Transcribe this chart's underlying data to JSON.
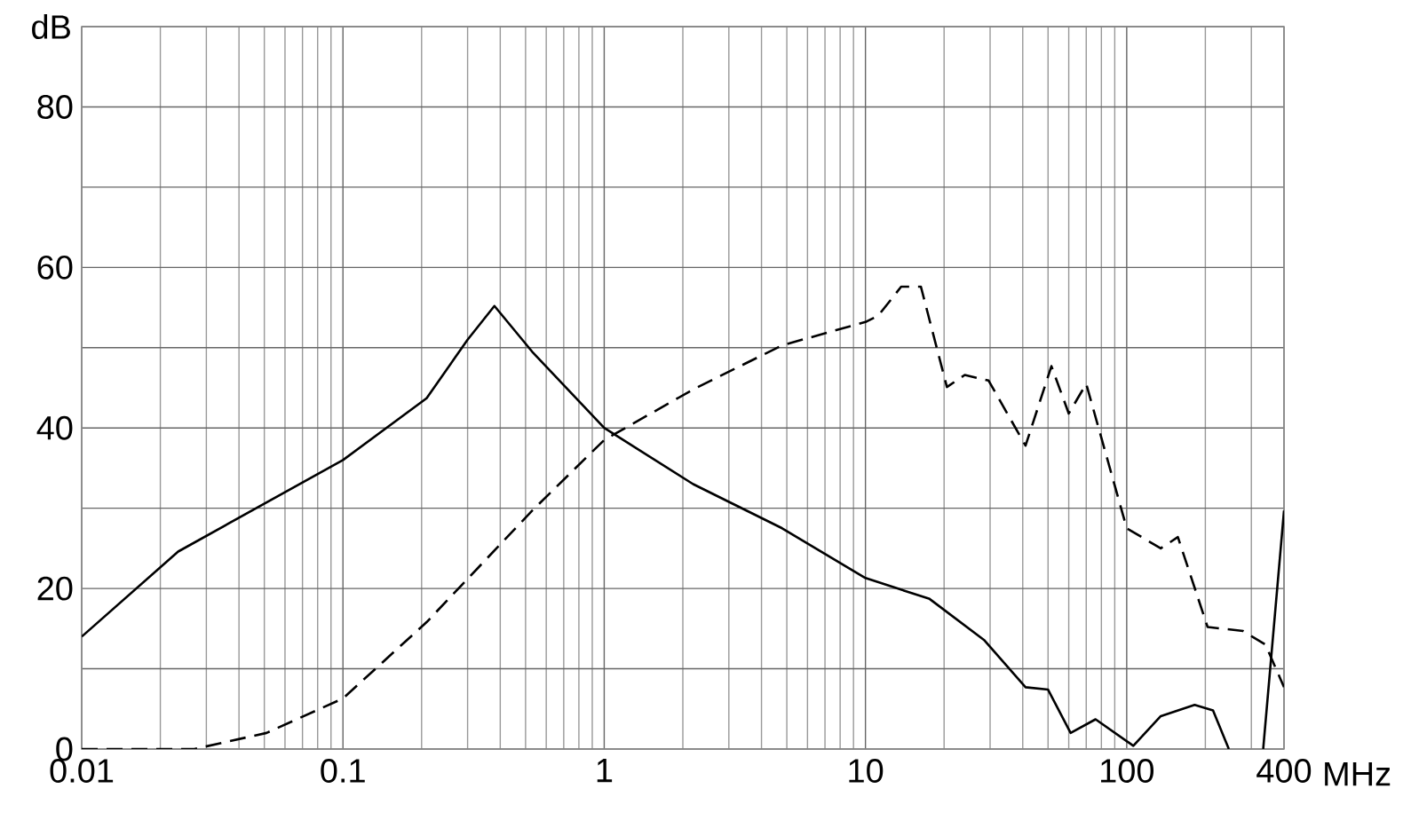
{
  "chart_data": {
    "type": "line",
    "xlabel": "MHz",
    "ylabel": "dB",
    "log": "x",
    "grid": true,
    "xlim": [
      0.01,
      400
    ],
    "xticks": [
      0.01,
      0.1,
      1,
      10,
      100,
      400
    ],
    "ylim": [
      0,
      90
    ],
    "yticks": [
      0,
      {
        "value": 10,
        "label": null
      },
      20,
      {
        "value": 30,
        "label": null
      },
      40,
      {
        "value": 50,
        "label": null
      },
      60,
      {
        "value": 70,
        "label": null
      },
      80,
      {
        "value": 90,
        "label": null
      }
    ],
    "series": [
      {
        "color": "#000000",
        "line_style": "solid",
        "x": [
          0.01,
          0.0234,
          0.1,
          0.209,
          0.3,
          0.38,
          0.53,
          1,
          2.19,
          4.8,
          10,
          17.6,
          28.4,
          41,
          50,
          61,
          76,
          106,
          135,
          182,
          214,
          246,
          290,
          333,
          400
        ],
        "values": [
          14,
          24.6,
          36,
          43.7,
          51,
          55.2,
          49.5,
          40,
          33,
          27.5,
          21.3,
          18.7,
          13.6,
          7.7,
          7.4,
          2,
          3.7,
          0.4,
          4.1,
          5.5,
          4.8,
          0,
          null,
          0,
          29.7
        ]
      },
      {
        "color": "#000000",
        "line_style": "dashed",
        "x": [
          0.01,
          0.027,
          0.051,
          0.1,
          0.209,
          0.53,
          1,
          2.19,
          4.8,
          10,
          11.2,
          13.7,
          16.3,
          20.5,
          24,
          29.6,
          41,
          51.5,
          60,
          70,
          100,
          135,
          157,
          204,
          279,
          340,
          400
        ],
        "values": [
          0,
          0,
          2,
          6.3,
          15.8,
          29.7,
          38.5,
          44.8,
          50.3,
          53.2,
          54,
          57.6,
          57.6,
          45.1,
          46.6,
          45.9,
          37.8,
          47.7,
          41.8,
          45.5,
          27.5,
          25,
          26.4,
          15.2,
          14.7,
          13,
          7.7
        ]
      }
    ]
  }
}
